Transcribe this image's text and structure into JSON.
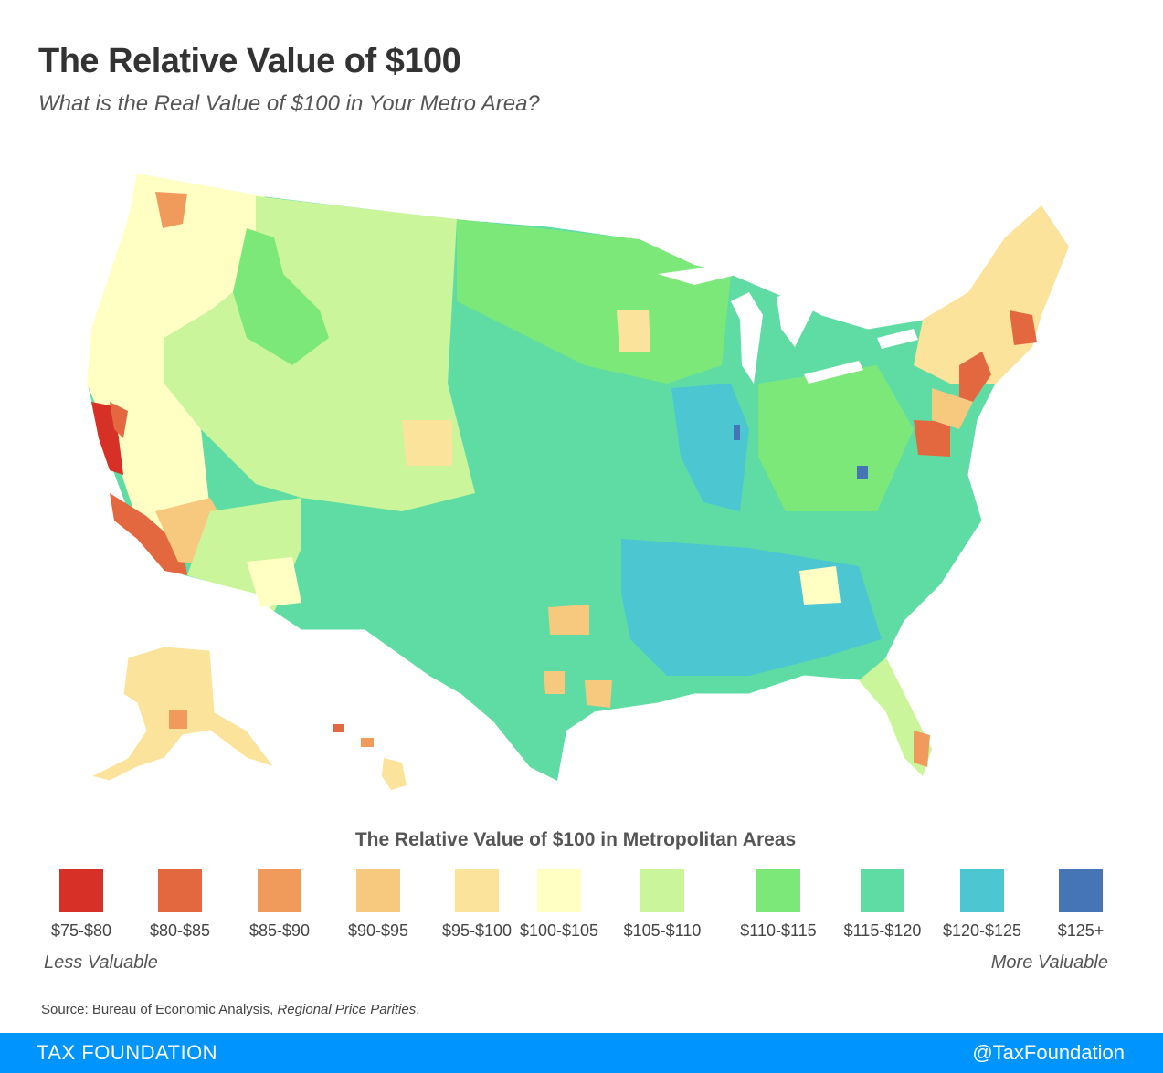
{
  "header": {
    "title": "The Relative Value of $100",
    "subtitle": "What is the Real Value of $100 in Your Metro Area?"
  },
  "map": {
    "subject": "Relative value of $100 by metropolitan area, contiguous United States, Alaska and Hawaii",
    "scale": "choropleth"
  },
  "legend": {
    "title": "The Relative Value of $100 in Metropolitan Areas",
    "items": [
      {
        "label": "$75-$80",
        "color": "#d73027"
      },
      {
        "label": "$80-$85",
        "color": "#e4683f"
      },
      {
        "label": "$85-$90",
        "color": "#f09b5c"
      },
      {
        "label": "$90-$95",
        "color": "#f7c97f"
      },
      {
        "label": "$95-$100",
        "color": "#fbe39c"
      },
      {
        "label": "$100-$105",
        "color": "#ffffc4"
      },
      {
        "label": "$105-$110",
        "color": "#cbf59b"
      },
      {
        "label": "$110-$115",
        "color": "#7de87a"
      },
      {
        "label": "$115-$120",
        "color": "#5fdca4"
      },
      {
        "label": "$120-$125",
        "color": "#4cc6d0"
      },
      {
        "label": "$125+",
        "color": "#4575b4"
      }
    ],
    "less_label": "Less Valuable",
    "more_label": "More Valuable"
  },
  "source": {
    "prefix": "Source: Bureau of Economic Analysis, ",
    "italic": "Regional Price Parities",
    "suffix": "."
  },
  "footer": {
    "brand": "TAX FOUNDATION",
    "handle": "@TaxFoundation",
    "color": "#0094ff"
  }
}
